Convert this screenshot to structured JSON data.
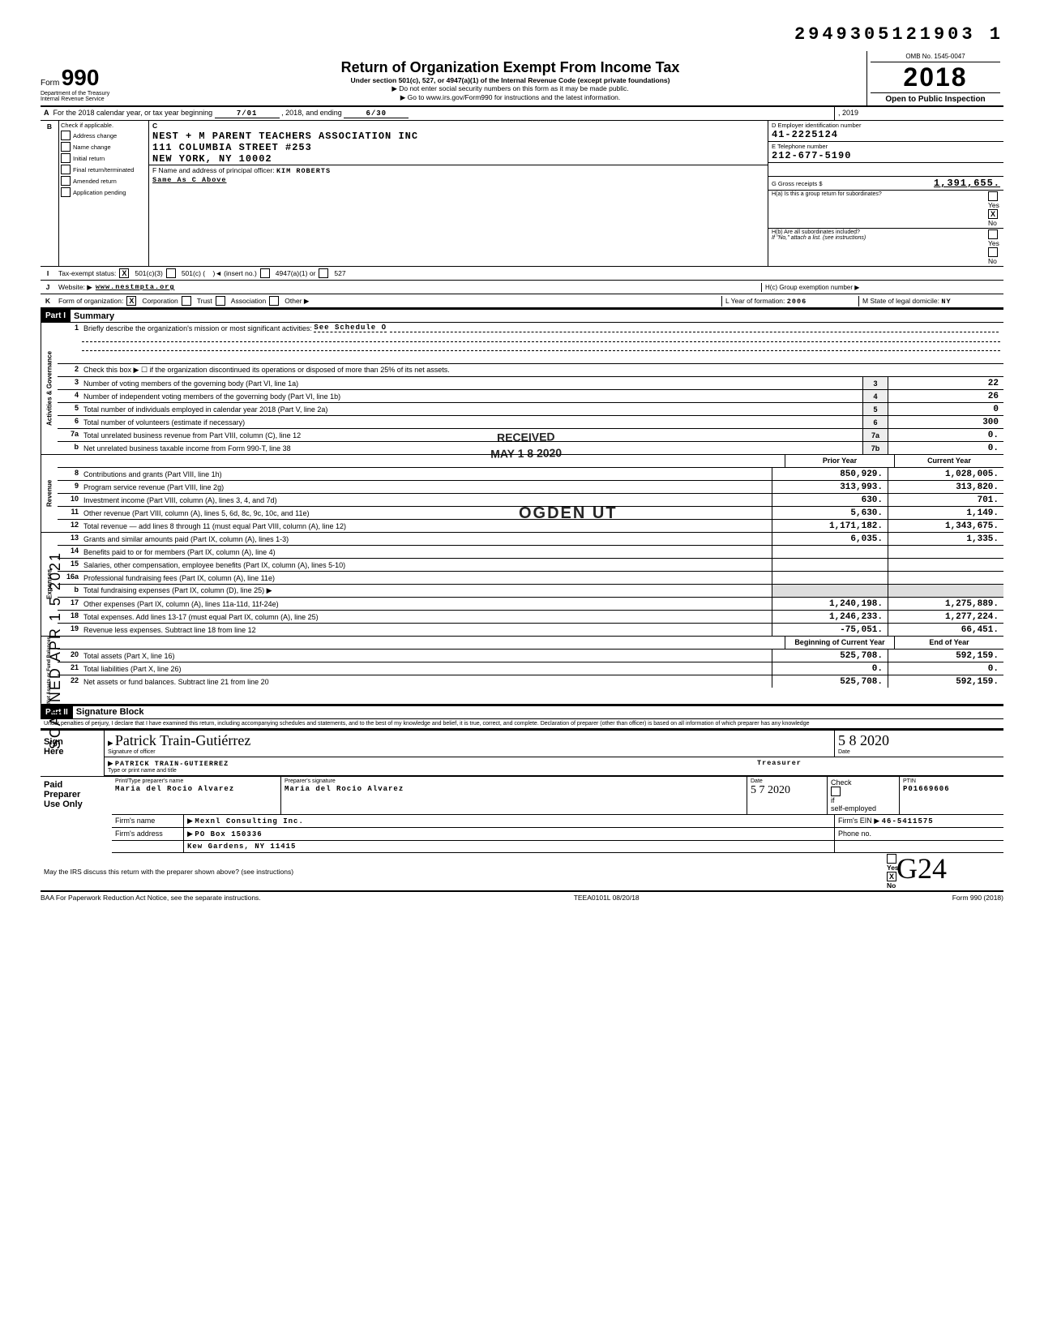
{
  "doc_number": "2949305121903  1",
  "omb": "OMB No. 1545-0047",
  "form_year": "2018",
  "title": "Return of Organization Exempt From Income Tax",
  "subtitle1": "Under section 501(c), 527, or 4947(a)(1) of the Internal Revenue Code (except private foundations)",
  "subtitle2a": "▶ Do not enter social security numbers on this form as it may be made public.",
  "subtitle2b": "▶ Go to www.irs.gov/Form990 for instructions and the latest information.",
  "dept": "Department of the Treasury\nInternal Revenue Service",
  "open_public": "Open to Public Inspection",
  "line_a": {
    "label": "For the 2018 calendar year, or tax year beginning",
    "begin": "7/01",
    "mid": ", 2018, and ending",
    "end": "6/30",
    "end_year": ", 2019"
  },
  "check_items": [
    "Address change",
    "Name change",
    "Initial return",
    "Final return/terminated",
    "Amended return",
    "Application pending"
  ],
  "org": {
    "name": "NEST + M PARENT TEACHERS ASSOCIATION INC",
    "addr1": "111 COLUMBIA STREET #253",
    "addr2": "NEW YORK, NY 10002",
    "ein_label": "D  Employer identification number",
    "ein": "41-2225124",
    "phone_label": "E  Telephone number",
    "phone": "212-677-5190",
    "gross_label": "G  Gross receipts $",
    "gross": "1,391,655."
  },
  "line_f": {
    "label": "F  Name and address of principal officer:",
    "name": "KIM ROBERTS",
    "same": "Same As C Above"
  },
  "line_h": {
    "a_label": "H(a) Is this a group return for subordinates?",
    "b_label": "H(b) Are all subordinates included?",
    "b_sub": "If \"No,\" attach a list. (see instructions)",
    "c_label": "H(c) Group exemption number ▶"
  },
  "line_i": {
    "label": "Tax-exempt status:",
    "c3": "501(c)(3)"
  },
  "line_j": {
    "label": "Website: ▶",
    "value": "www.nestmpta.org"
  },
  "line_k": {
    "label": "Form of organization:",
    "corp": "Corporation",
    "year_label": "L Year of formation:",
    "year": "2006",
    "state_label": "M State of legal domicile:",
    "state": "NY"
  },
  "part1": {
    "header": "Part I",
    "title": "Summary",
    "q1": "Briefly describe the organization's mission or most significant activities:",
    "q1_val": "See Schedule O",
    "q2": "Check this box ▶ ☐ if the organization discontinued its operations or disposed of more than 25% of its net assets.",
    "governance": [
      {
        "n": "3",
        "t": "Number of voting members of the governing body (Part VI, line 1a)",
        "b": "3",
        "v": "22"
      },
      {
        "n": "4",
        "t": "Number of independent voting members of the governing body (Part VI, line 1b)",
        "b": "4",
        "v": "26"
      },
      {
        "n": "5",
        "t": "Total number of individuals employed in calendar year 2018 (Part V, line 2a)",
        "b": "5",
        "v": "0"
      },
      {
        "n": "6",
        "t": "Total number of volunteers (estimate if necessary)",
        "b": "6",
        "v": "300"
      },
      {
        "n": "7a",
        "t": "Total unrelated business revenue from Part VIII, column (C), line 12",
        "b": "7a",
        "v": "0."
      },
      {
        "n": "b",
        "t": "Net unrelated business taxable income from Form 990-T, line 38",
        "b": "7b",
        "v": "0."
      }
    ],
    "col_headers": {
      "prior": "Prior Year",
      "current": "Current Year"
    },
    "revenue": [
      {
        "n": "8",
        "t": "Contributions and grants (Part VIII, line 1h)",
        "p": "850,929.",
        "c": "1,028,005."
      },
      {
        "n": "9",
        "t": "Program service revenue (Part VIII, line 2g)",
        "p": "313,993.",
        "c": "313,820."
      },
      {
        "n": "10",
        "t": "Investment income (Part VIII, column (A), lines 3, 4, and 7d)",
        "p": "630.",
        "c": "701."
      },
      {
        "n": "11",
        "t": "Other revenue (Part VIII, column (A), lines 5, 6d, 8c, 9c, 10c, and 11e)",
        "p": "5,630.",
        "c": "1,149."
      },
      {
        "n": "12",
        "t": "Total revenue — add lines 8 through 11 (must equal Part VIII, column (A), line 12)",
        "p": "1,171,182.",
        "c": "1,343,675."
      }
    ],
    "expenses": [
      {
        "n": "13",
        "t": "Grants and similar amounts paid (Part IX, column (A), lines 1-3)",
        "p": "6,035.",
        "c": "1,335."
      },
      {
        "n": "14",
        "t": "Benefits paid to or for members (Part IX, column (A), line 4)",
        "p": "",
        "c": ""
      },
      {
        "n": "15",
        "t": "Salaries, other compensation, employee benefits (Part IX, column (A), lines 5-10)",
        "p": "",
        "c": ""
      },
      {
        "n": "16a",
        "t": "Professional fundraising fees (Part IX, column (A), line 11e)",
        "p": "",
        "c": ""
      },
      {
        "n": "b",
        "t": "Total fundraising expenses (Part IX, column (D), line 25) ▶",
        "p": "shaded",
        "c": "shaded"
      },
      {
        "n": "17",
        "t": "Other expenses (Part IX, column (A), lines 11a-11d, 11f-24e)",
        "p": "1,240,198.",
        "c": "1,275,889."
      },
      {
        "n": "18",
        "t": "Total expenses. Add lines 13-17 (must equal Part IX, column (A), line 25)",
        "p": "1,246,233.",
        "c": "1,277,224."
      },
      {
        "n": "19",
        "t": "Revenue less expenses. Subtract line 18 from line 12",
        "p": "-75,051.",
        "c": "66,451."
      }
    ],
    "net_headers": {
      "begin": "Beginning of Current Year",
      "end": "End of Year"
    },
    "netassets": [
      {
        "n": "20",
        "t": "Total assets (Part X, line 16)",
        "p": "525,708.",
        "c": "592,159."
      },
      {
        "n": "21",
        "t": "Total liabilities (Part X, line 26)",
        "p": "0.",
        "c": "0."
      },
      {
        "n": "22",
        "t": "Net assets or fund balances. Subtract line 21 from line 20",
        "p": "525,708.",
        "c": "592,159."
      }
    ]
  },
  "part2": {
    "header": "Part II",
    "title": "Signature Block",
    "penalties": "Under penalties of perjury, I declare that I have examined this return, including accompanying schedules and statements, and to the best of my knowledge and belief, it is true, correct, and complete. Declaration of preparer (other than officer) is based on all information of which preparer has any knowledge",
    "sig_name_cursive": "Patrick Train-Gutiérrez",
    "sig_date": "5 8 2020",
    "officer_name": "PATRICK TRAIN-GUTIERREZ",
    "officer_title": "Treasurer",
    "preparer": {
      "name": "Maria del Rocio Alvarez",
      "sig": "Maria del Rocio Alvarez",
      "date": "5 7 2020",
      "self_employed": true,
      "ptin": "P01669606",
      "firm": "Mexnl Consulting Inc.",
      "firm_addr1": "PO Box 150336",
      "firm_addr2": "Kew Gardens, NY 11415",
      "firm_ein": "46-5411575"
    },
    "discuss": "May the IRS discuss this return with the preparer shown above? (see instructions)"
  },
  "footer": {
    "left": "BAA  For Paperwork Reduction Act Notice, see the separate instructions.",
    "mid": "TEEA0101L  08/20/18",
    "right": "Form 990 (2018)"
  },
  "stamps": {
    "scanned": "SCANNED APR 1 5 2021",
    "received": "RECEIVED",
    "date": "MAY 1 8 2020",
    "ogden": "OGDEN UT"
  }
}
